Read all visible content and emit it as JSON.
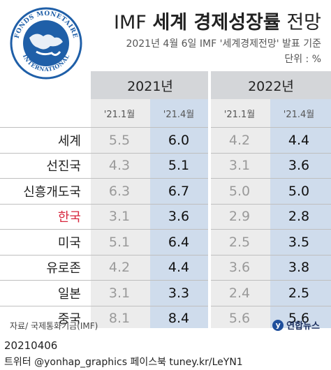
{
  "header": {
    "logo_text": "FONDS MONETAIRE INTERNATIONAL",
    "title_prefix": "IMF",
    "title_bold": "세계 경제성장률",
    "title_suffix": "전망",
    "subtitle": "2021년 4월 6일 IMF '세계경제전망' 발표 기준",
    "unit": "단위 : %"
  },
  "colors": {
    "header_gray": "#d4d6d9",
    "old_column_bg": "#ececec",
    "new_column_bg": "#cfdcec",
    "highlight_red": "#d7263d",
    "brand_navy": "#1c2f5e"
  },
  "chart_data": {
    "type": "table",
    "years": [
      "2021년",
      "2022년"
    ],
    "columns": [
      "'21.1월",
      "'21.4월",
      "'21.1월",
      "'21.4월"
    ],
    "rows": [
      {
        "name": "세계",
        "values": [
          "5.5",
          "6.0",
          "4.2",
          "4.4"
        ],
        "highlight": false
      },
      {
        "name": "선진국",
        "values": [
          "4.3",
          "5.1",
          "3.1",
          "3.6"
        ],
        "highlight": false
      },
      {
        "name": "신흥개도국",
        "values": [
          "6.3",
          "6.7",
          "5.0",
          "5.0"
        ],
        "highlight": false
      },
      {
        "name": "한국",
        "values": [
          "3.1",
          "3.6",
          "2.9",
          "2.8"
        ],
        "highlight": true
      },
      {
        "name": "미국",
        "values": [
          "5.1",
          "6.4",
          "2.5",
          "3.5"
        ],
        "highlight": false
      },
      {
        "name": "유로존",
        "values": [
          "4.2",
          "4.4",
          "3.6",
          "3.8"
        ],
        "highlight": false
      },
      {
        "name": "일본",
        "values": [
          "3.1",
          "3.3",
          "2.4",
          "2.5"
        ],
        "highlight": false
      },
      {
        "name": "중국",
        "values": [
          "8.1",
          "8.4",
          "5.6",
          "5.6"
        ],
        "highlight": false
      }
    ]
  },
  "footer": {
    "source": "자료/ 국제통화기금(IMF)",
    "brand_mark": "y",
    "brand": "연합뉴스",
    "date": "20210406",
    "credit": "트위터 @yonhap_graphics  페이스북 tuney.kr/LeYN1"
  }
}
